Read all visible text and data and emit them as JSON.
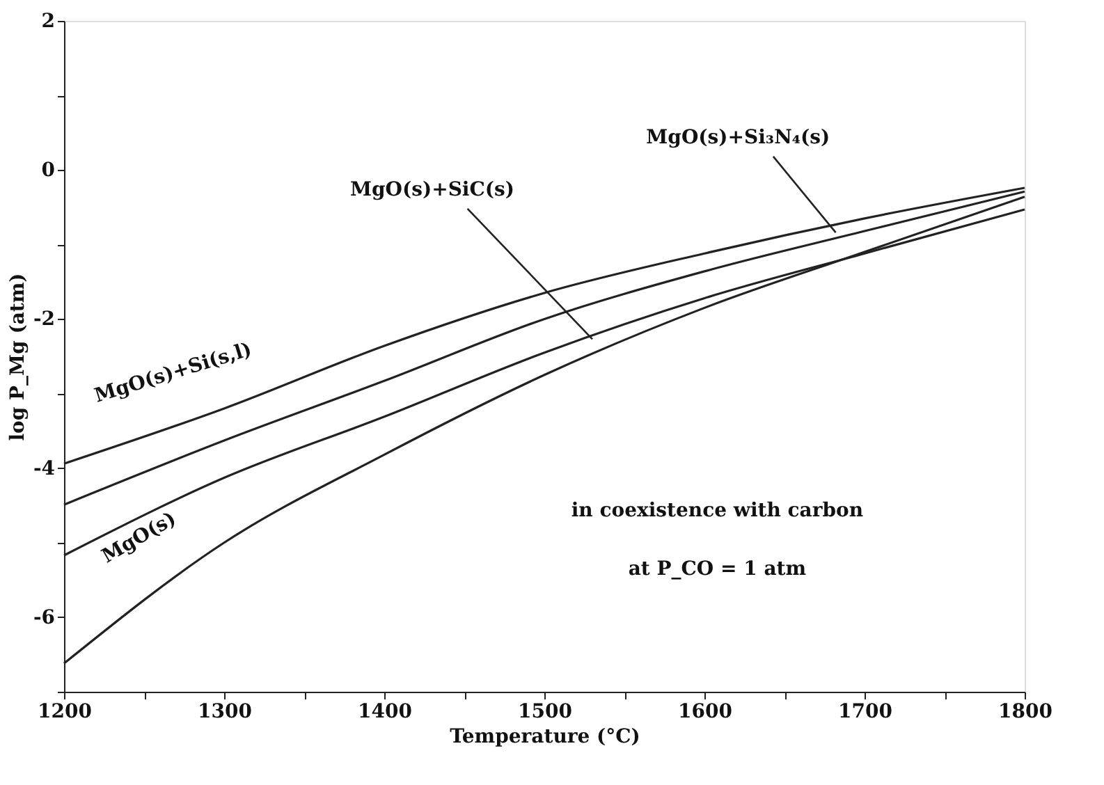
{
  "chart_data": {
    "type": "line",
    "xlabel": "Temperature (°C)",
    "ylabel": "log P_Mg (atm)",
    "x": [
      1200,
      1300,
      1400,
      1500,
      1600,
      1700,
      1800
    ],
    "xlim": [
      1200,
      1800
    ],
    "ylim": [
      -7,
      2
    ],
    "xticks": [
      1200,
      {
        "value": 1250,
        "label": null
      },
      1300,
      {
        "value": 1350,
        "label": null
      },
      1400,
      {
        "value": 1450,
        "label": null
      },
      1500,
      {
        "value": 1550,
        "label": null
      },
      1600,
      {
        "value": 1650,
        "label": null
      },
      1700,
      {
        "value": 1750,
        "label": null
      },
      1800
    ],
    "yticks": [
      {
        "value": -7,
        "label": null
      },
      -6,
      {
        "value": -5,
        "label": null
      },
      -4,
      {
        "value": -3,
        "label": null
      },
      -2,
      {
        "value": -1,
        "label": null
      },
      0,
      {
        "value": 1,
        "label": null
      },
      2
    ],
    "grid": false,
    "legend": false,
    "marker": "none",
    "line_style": "solid",
    "series": [
      {
        "name": "MgO(s)+Si(s,l)",
        "color": "#222222",
        "values": [
          -3.94,
          -3.2,
          -2.36,
          -1.65,
          -1.12,
          -0.65,
          -0.24
        ]
      },
      {
        "name": "MgO(s)+Si₃N₄(s)",
        "color": "#222222",
        "values": [
          -4.49,
          -3.63,
          -2.83,
          -2.0,
          -1.36,
          -0.82,
          -0.29
        ]
      },
      {
        "name": "MgO(s)+SiC(s)",
        "color": "#222222",
        "values": [
          -5.17,
          -4.13,
          -3.31,
          -2.45,
          -1.72,
          -1.12,
          -0.53
        ]
      },
      {
        "name": "MgO(s)",
        "color": "#222222",
        "values": [
          -6.62,
          -5.0,
          -3.82,
          -2.75,
          -1.85,
          -1.1,
          -0.36
        ]
      }
    ],
    "annotations": [
      "in coexistence with carbon",
      "at P_CO = 1 atm"
    ]
  }
}
